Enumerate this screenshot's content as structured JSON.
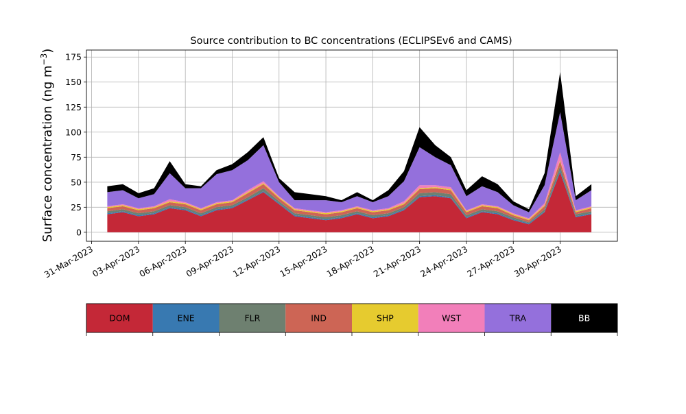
{
  "chart_data": {
    "type": "area",
    "title": "Source contribution to BC concentrations (ECLIPSEv6 and CAMS)",
    "xlabel": "",
    "ylabel": "Surface concentration (ng m",
    "ylabel_unit_sup": "−3",
    "ylabel_close": ")",
    "ylim": [
      -9,
      182
    ],
    "yticks": [
      0,
      25,
      50,
      75,
      100,
      125,
      150,
      175
    ],
    "xlim": [
      "2023-03-30T16:00",
      "2023-05-03T16:00"
    ],
    "xticks": [
      "2023-03-31",
      "2023-04-03",
      "2023-04-06",
      "2023-04-09",
      "2023-04-12",
      "2023-04-15",
      "2023-04-18",
      "2023-04-21",
      "2023-04-24",
      "2023-04-27",
      "2023-04-30"
    ],
    "xtick_labels": [
      "31-Mar-2023",
      "03-Apr-2023",
      "06-Apr-2023",
      "09-Apr-2023",
      "12-Apr-2023",
      "15-Apr-2023",
      "18-Apr-2023",
      "21-Apr-2023",
      "24-Apr-2023",
      "27-Apr-2023",
      "30-Apr-2023"
    ],
    "grid": true,
    "stacked": true,
    "series_order": [
      "DOM",
      "ENE",
      "FLR",
      "IND",
      "SHP",
      "WST",
      "TRA",
      "BB"
    ],
    "colors": {
      "DOM": "#c42837",
      "ENE": "#3879b1",
      "FLR": "#6e8070",
      "IND": "#cd6555",
      "SHP": "#e6cb2f",
      "WST": "#f27fba",
      "TRA": "#9470dc",
      "BB": "#000000"
    },
    "x": [
      "2023-04-01",
      "2023-04-02",
      "2023-04-03",
      "2023-04-04",
      "2023-04-05",
      "2023-04-06",
      "2023-04-07",
      "2023-04-08",
      "2023-04-09",
      "2023-04-10",
      "2023-04-11",
      "2023-04-12",
      "2023-04-13",
      "2023-04-14",
      "2023-04-15",
      "2023-04-16",
      "2023-04-17",
      "2023-04-18",
      "2023-04-19",
      "2023-04-20",
      "2023-04-21",
      "2023-04-22",
      "2023-04-23",
      "2023-04-24",
      "2023-04-25",
      "2023-04-26",
      "2023-04-27",
      "2023-04-28",
      "2023-04-29",
      "2023-04-30",
      "2023-05-01",
      "2023-05-02"
    ],
    "series": [
      {
        "name": "DOM",
        "values": [
          18,
          20,
          16,
          18,
          24,
          22,
          16,
          22,
          24,
          32,
          40,
          28,
          16,
          14,
          12,
          14,
          18,
          14,
          16,
          22,
          35,
          36,
          34,
          14,
          20,
          18,
          12,
          8,
          20,
          60,
          15,
          18
        ]
      },
      {
        "name": "ENE",
        "values": [
          1,
          1,
          1,
          1,
          1,
          1,
          1,
          1,
          1,
          1,
          1,
          1,
          1,
          1,
          1,
          1,
          1,
          1,
          1,
          1,
          1,
          1,
          1,
          1,
          1,
          1,
          1,
          1,
          1,
          2,
          1,
          1
        ]
      },
      {
        "name": "FLR",
        "values": [
          2,
          2,
          2,
          2,
          2,
          2,
          2,
          2,
          2,
          2,
          3,
          2,
          2,
          2,
          2,
          2,
          2,
          2,
          2,
          2,
          3,
          3,
          3,
          2,
          2,
          2,
          2,
          1,
          2,
          4,
          2,
          2
        ]
      },
      {
        "name": "IND",
        "values": [
          3,
          3,
          3,
          3,
          3,
          3,
          3,
          3,
          3,
          4,
          4,
          3,
          3,
          3,
          3,
          3,
          3,
          3,
          3,
          3,
          4,
          4,
          4,
          3,
          3,
          3,
          2,
          2,
          3,
          5,
          2,
          3
        ]
      },
      {
        "name": "SHP",
        "values": [
          1,
          1,
          1,
          1,
          1,
          1,
          1,
          1,
          1,
          1,
          1,
          1,
          1,
          1,
          1,
          1,
          1,
          1,
          1,
          1,
          1,
          1,
          1,
          1,
          1,
          1,
          1,
          1,
          1,
          1,
          1,
          1
        ]
      },
      {
        "name": "WST",
        "values": [
          1,
          1,
          1,
          1,
          2,
          1,
          1,
          1,
          1,
          2,
          2,
          1,
          1,
          1,
          1,
          1,
          1,
          1,
          1,
          2,
          3,
          2,
          2,
          1,
          1,
          1,
          1,
          1,
          2,
          8,
          1,
          1
        ]
      },
      {
        "name": "TRA",
        "values": [
          14,
          14,
          10,
          12,
          26,
          14,
          20,
          28,
          30,
          30,
          36,
          14,
          8,
          10,
          12,
          8,
          10,
          8,
          12,
          20,
          38,
          28,
          22,
          14,
          18,
          14,
          8,
          6,
          18,
          40,
          10,
          16
        ]
      },
      {
        "name": "BB",
        "values": [
          6,
          6,
          5,
          6,
          12,
          4,
          2,
          4,
          6,
          8,
          8,
          4,
          8,
          6,
          4,
          2,
          4,
          2,
          6,
          10,
          20,
          12,
          8,
          6,
          10,
          8,
          4,
          3,
          12,
          40,
          4,
          6
        ]
      }
    ],
    "legend": {
      "placement": "below",
      "entries": [
        "DOM",
        "ENE",
        "FLR",
        "IND",
        "SHP",
        "WST",
        "TRA",
        "BB"
      ],
      "text_colors": {
        "DOM": "#000000",
        "ENE": "#000000",
        "FLR": "#000000",
        "IND": "#000000",
        "SHP": "#000000",
        "WST": "#000000",
        "TRA": "#000000",
        "BB": "#ffffff"
      }
    }
  }
}
